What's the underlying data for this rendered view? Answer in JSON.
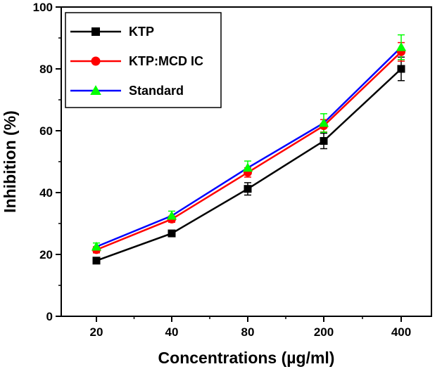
{
  "chart_data": {
    "type": "line",
    "title": "",
    "xlabel": "Concentrations (µg/ml)",
    "ylabel": "Inhibition (%)",
    "categories": [
      "20",
      "40",
      "80",
      "200",
      "400"
    ],
    "ylim": [
      0,
      100
    ],
    "yticks": [
      0,
      20,
      40,
      60,
      80,
      100
    ],
    "legend_position": "top-left",
    "grid": false,
    "series": [
      {
        "name": "KTP",
        "values": [
          18,
          26.8,
          41.2,
          56.7,
          80
        ],
        "errors": [
          1,
          1,
          2,
          2.5,
          3.8
        ],
        "line_color": "#000000",
        "marker_color": "#000000",
        "marker": "square"
      },
      {
        "name": "KTP:MCD IC",
        "values": [
          21.5,
          31.4,
          46.5,
          61.6,
          85.5
        ],
        "errors": [
          1,
          1,
          1.5,
          2,
          3
        ],
        "line_color": "#ff0000",
        "marker_color": "#ff0000",
        "marker": "circle"
      },
      {
        "name": "Standard",
        "values": [
          22.5,
          32.5,
          48,
          62.5,
          87
        ],
        "errors": [
          1.2,
          1.5,
          2.2,
          3,
          4
        ],
        "line_color": "#0000ff",
        "marker_color": "#00ff00",
        "marker": "triangle"
      }
    ]
  }
}
